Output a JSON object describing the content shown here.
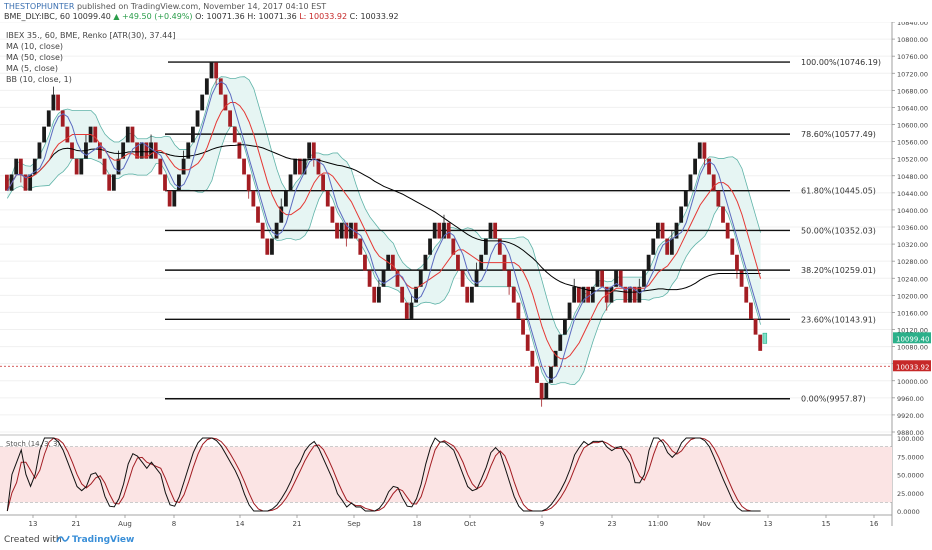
{
  "header": {
    "author": "THESTOPHUNTER",
    "published": "published on TradingView.com, November 14, 2017 04:10 EST",
    "symbol": "BME_DLY:IBC, 60",
    "last": "10099.40",
    "change": "+49.50 (+0.49%)",
    "ohlc_o": "O: 10071.36",
    "ohlc_h": "H: 10071.36",
    "ohlc_l": "L: 10033.92",
    "ohlc_c": "C: 10033.92"
  },
  "legend": {
    "title": "IBEX 35., 60, BME, Renko [ATR(30), 37.44]",
    "ma10": "MA (10, close)",
    "ma50": "MA (50, close)",
    "ma5": "MA (5, close)",
    "bb": "BB (10, close, 1)"
  },
  "footer": {
    "created": "Created with",
    "brand": "TradingView"
  },
  "colors": {
    "up": "#1a1a1a",
    "down": "#a31d23",
    "ma_red": "#e53935",
    "ma_black": "#000000",
    "ma_blue": "#5c6bc0",
    "bb": "#5fb3a8",
    "bb_fill": "#e6f5f3",
    "stoch_fill": "#fbe4e4",
    "current": "#c62828",
    "last_tag": "#2bb08a"
  },
  "chart_data": {
    "type": "renko",
    "y_axis": {
      "min": 9880,
      "max": 10840,
      "ticks": [
        10840,
        10800,
        10760,
        10720,
        10680,
        10640,
        10600,
        10560,
        10520,
        10480,
        10440,
        10400,
        10360,
        10320,
        10280,
        10240,
        10200,
        10160,
        10120,
        10080,
        10040,
        10000,
        9960,
        9920,
        9880
      ]
    },
    "x_axis_labels": [
      "13",
      "21",
      "Aug",
      "8",
      "14",
      "21",
      "Sep",
      "18",
      "Oct",
      "9",
      "23",
      "11:00",
      "Nov",
      "13",
      "15",
      "16"
    ],
    "fib_levels": [
      {
        "label": "100.00%(10746.19)",
        "value": 10746.19
      },
      {
        "label": "78.60%(10577.49)",
        "value": 10577.49
      },
      {
        "label": "61.80%(10445.05)",
        "value": 10445.05
      },
      {
        "label": "50.00%(10352.03)",
        "value": 10352.03
      },
      {
        "label": "38.20%(10259.01)",
        "value": 10259.01
      },
      {
        "label": "23.60%(10143.91)",
        "value": 10143.91
      },
      {
        "label": "0.00%(9957.87)",
        "value": 9957.87
      }
    ],
    "last_price": {
      "label": "10099.40",
      "value": 10099.4
    },
    "current_price": {
      "label": "10033.92",
      "value": 10033.92
    },
    "closes": [
      10445,
      10483,
      10520,
      10483,
      10445,
      10483,
      10520,
      10558,
      10595,
      10633,
      10670,
      10633,
      10595,
      10558,
      10520,
      10483,
      10520,
      10558,
      10595,
      10558,
      10520,
      10483,
      10445,
      10483,
      10520,
      10558,
      10595,
      10558,
      10520,
      10558,
      10520,
      10558,
      10520,
      10483,
      10445,
      10408,
      10445,
      10483,
      10520,
      10558,
      10595,
      10633,
      10670,
      10708,
      10745,
      10708,
      10670,
      10633,
      10595,
      10558,
      10520,
      10483,
      10445,
      10408,
      10370,
      10333,
      10295,
      10333,
      10370,
      10408,
      10445,
      10483,
      10520,
      10483,
      10520,
      10558,
      10520,
      10483,
      10445,
      10408,
      10370,
      10333,
      10370,
      10333,
      10370,
      10333,
      10295,
      10258,
      10220,
      10183,
      10220,
      10258,
      10295,
      10258,
      10220,
      10183,
      10145,
      10183,
      10220,
      10258,
      10295,
      10333,
      10370,
      10333,
      10370,
      10333,
      10295,
      10258,
      10220,
      10183,
      10220,
      10258,
      10295,
      10333,
      10370,
      10333,
      10295,
      10258,
      10220,
      10183,
      10145,
      10108,
      10070,
      10033,
      9995,
      9958,
      9995,
      10033,
      10070,
      10108,
      10145,
      10183,
      10220,
      10183,
      10220,
      10183,
      10220,
      10258,
      10220,
      10183,
      10220,
      10258,
      10220,
      10183,
      10220,
      10183,
      10220,
      10258,
      10295,
      10333,
      10370,
      10333,
      10295,
      10333,
      10370,
      10408,
      10445,
      10483,
      10520,
      10558,
      10520,
      10483,
      10445,
      10408,
      10370,
      10333,
      10295,
      10258,
      10220,
      10183,
      10145,
      10108,
      10070
    ],
    "stochastic": {
      "label": "Stoch (14, 3, 3)",
      "levels": [
        20,
        80
      ],
      "ticks": [
        "100.000",
        "75.0000",
        "50.0000",
        "25.0000",
        "0.0000"
      ]
    }
  }
}
